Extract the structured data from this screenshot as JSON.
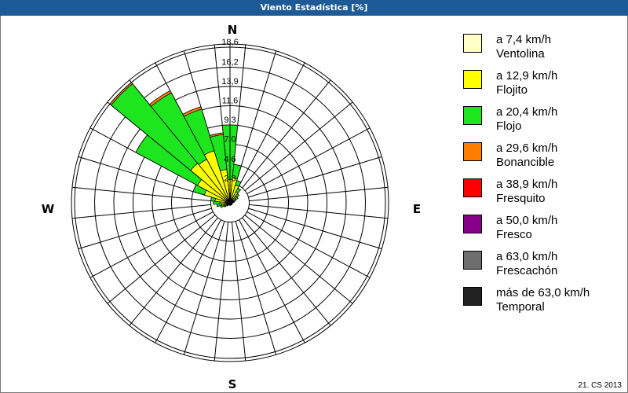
{
  "title": "Viento Estadística [%]",
  "footer": "21. CS 2013",
  "chart_data": {
    "type": "wind-rose",
    "title": "Viento Estadística [%]",
    "unit": "%",
    "directions_deg": [
      0,
      11.25,
      22.5,
      33.75,
      45,
      56.25,
      67.5,
      78.75,
      90,
      101.25,
      112.5,
      123.75,
      135,
      146.25,
      157.5,
      168.75,
      180,
      191.25,
      202.5,
      213.75,
      225,
      236.25,
      247.5,
      258.75,
      270,
      281.25,
      292.5,
      303.75,
      315,
      326.25,
      337.5,
      348.75
    ],
    "cardinals": {
      "n": "N",
      "e": "E",
      "s": "S",
      "w": "W"
    },
    "ring_labels": [
      "2,3",
      "4,6",
      "7,0",
      "9,3",
      "11,6",
      "13,9",
      "16,2",
      "18,6"
    ],
    "ring_values": [
      2.3,
      4.6,
      7.0,
      9.3,
      11.6,
      13.9,
      16.2,
      18.6
    ],
    "rmax": 18.6,
    "series": [
      {
        "name": "a 7,4 km/h",
        "desc": "Ventolina",
        "color": "#ffffc8",
        "values": [
          0.3,
          0.3,
          0.3,
          0.2,
          0.2,
          0.2,
          0.1,
          0.1,
          0.1,
          0.1,
          0.1,
          0.1,
          0.1,
          0.1,
          0.1,
          0.1,
          0.1,
          0.1,
          0.1,
          0.1,
          0.1,
          0.1,
          0.2,
          0.2,
          0.2,
          0.3,
          0.3,
          0.3,
          0.3,
          0.3,
          0.3,
          0.3
        ]
      },
      {
        "name": "a 12,9 km/h",
        "desc": "Flojito",
        "color": "#ffff00",
        "values": [
          2.5,
          2.7,
          1.9,
          1.3,
          0.8,
          0.6,
          0.4,
          0.3,
          0.2,
          0.2,
          0.2,
          0.2,
          0.2,
          0.2,
          0.2,
          0.2,
          0.2,
          0.2,
          0.2,
          0.2,
          0.3,
          0.4,
          0.6,
          0.8,
          1.0,
          1.5,
          2.9,
          4.1,
          5.8,
          5.6,
          6.2,
          3.7
        ]
      },
      {
        "name": "a 20,4 km/h",
        "desc": "Flojo",
        "color": "#1ee61e",
        "values": [
          6.5,
          1.6,
          0.6,
          0.5,
          0.4,
          0.3,
          0.2,
          0.1,
          0,
          0,
          0,
          0,
          0,
          0,
          0,
          0,
          0,
          0,
          0,
          0,
          0.1,
          0.3,
          0.4,
          0.6,
          0.8,
          0.5,
          1.4,
          8.4,
          12.3,
          9.0,
          5.2,
          4.2
        ]
      },
      {
        "name": "a 29,6 km/h",
        "desc": "Bonancible",
        "color": "#ff8000",
        "values": [
          0,
          0,
          0,
          0,
          0,
          0,
          0,
          0,
          0,
          0,
          0,
          0,
          0,
          0,
          0,
          0,
          0,
          0,
          0,
          0,
          0,
          0,
          0,
          0,
          0,
          0,
          0,
          0,
          0.2,
          0.3,
          0.3,
          0.2
        ]
      },
      {
        "name": "a 38,9 km/h",
        "desc": "Fresquito",
        "color": "#ff0000",
        "values": [
          0,
          0,
          0,
          0,
          0,
          0,
          0,
          0,
          0,
          0,
          0,
          0,
          0,
          0,
          0,
          0,
          0,
          0,
          0,
          0,
          0,
          0,
          0,
          0,
          0,
          0,
          0,
          0,
          0,
          0,
          0,
          0
        ]
      },
      {
        "name": "a 50,0 km/h",
        "desc": "Fresco",
        "color": "#880088",
        "values": [
          0,
          0,
          0,
          0,
          0,
          0,
          0,
          0,
          0,
          0,
          0,
          0,
          0,
          0,
          0,
          0,
          0,
          0,
          0,
          0,
          0,
          0,
          0,
          0,
          0,
          0,
          0,
          0,
          0,
          0,
          0,
          0
        ]
      },
      {
        "name": "a 63,0 km/h",
        "desc": "Frescachón",
        "color": "#6e6e6e",
        "values": [
          0,
          0,
          0,
          0,
          0,
          0,
          0,
          0,
          0,
          0,
          0,
          0,
          0,
          0,
          0,
          0,
          0,
          0,
          0,
          0,
          0,
          0,
          0,
          0,
          0,
          0,
          0,
          0,
          0,
          0,
          0,
          0
        ]
      },
      {
        "name": "más de 63,0 km/h",
        "desc": "Temporal",
        "color": "#222222",
        "values": [
          0,
          0,
          0,
          0,
          0,
          0,
          0,
          0,
          0,
          0,
          0,
          0,
          0,
          0,
          0,
          0,
          0,
          0,
          0,
          0,
          0,
          0,
          0,
          0,
          0,
          0,
          0,
          0,
          0,
          0,
          0,
          0
        ]
      }
    ],
    "legend": "right"
  }
}
